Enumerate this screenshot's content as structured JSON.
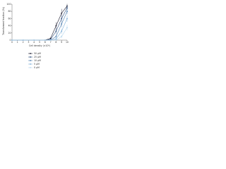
{
  "chart_data": {
    "type": "line",
    "x_label": "Cell density (×10⁵)",
    "y_label": "Transformed fraction (%)",
    "x": [
      0,
      2,
      4,
      6,
      7,
      8,
      9,
      10
    ],
    "xlim": [
      0,
      10
    ],
    "xticks": [
      0,
      1,
      2,
      3,
      4,
      5,
      6,
      7,
      8,
      9,
      10
    ],
    "ylim": [
      0,
      100
    ],
    "yticks": [
      0,
      20,
      40,
      60,
      80,
      100
    ],
    "series": [
      {
        "name": "50 μM",
        "color": "#1a1a2e",
        "values": [
          0,
          0,
          0,
          0,
          5,
          40,
          75,
          95
        ],
        "errors": [
          0,
          0,
          0,
          0,
          2,
          10,
          12,
          6
        ]
      },
      {
        "name": "25 μM",
        "color": "#2f4f7f",
        "values": [
          0,
          0,
          0,
          0,
          2,
          25,
          60,
          90
        ],
        "errors": [
          0,
          0,
          0,
          0,
          1,
          8,
          10,
          7
        ]
      },
      {
        "name": "10 μM",
        "color": "#4f7fb0",
        "values": [
          0,
          0,
          0,
          0,
          0,
          10,
          45,
          80
        ],
        "errors": [
          0,
          0,
          0,
          0,
          0,
          5,
          9,
          8
        ]
      },
      {
        "name": "5 μM",
        "color": "#7fb0d8",
        "values": [
          0,
          0,
          0,
          0,
          0,
          3,
          25,
          60
        ],
        "errors": [
          0,
          0,
          0,
          0,
          0,
          2,
          7,
          9
        ]
      },
      {
        "name": "0 μM",
        "color": "#b8d8ee",
        "values": [
          0,
          0,
          0,
          0,
          0,
          0,
          10,
          35
        ],
        "errors": [
          0,
          0,
          0,
          0,
          0,
          0,
          4,
          8
        ]
      }
    ]
  }
}
